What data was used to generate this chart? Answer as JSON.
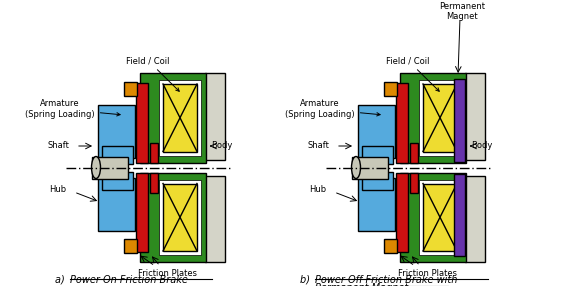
{
  "green": "#2d8a1f",
  "red": "#cc1111",
  "blue": "#55aadd",
  "yellow": "#eedc30",
  "orange": "#dd8800",
  "gray_light": "#d4d4c8",
  "gray_shaft": "#c8c8b8",
  "purple": "#6633aa",
  "black": "#000000",
  "white": "#ffffff",
  "ann_field_coil": "Field / Coil",
  "ann_armature": "Armature\n(Spring Loading)",
  "ann_shaft": "Shaft",
  "ann_hub": "Hub",
  "ann_body": "Body",
  "ann_friction": "Friction Plates",
  "ann_perm_magnet": "Permanent\nMagnet",
  "caption_a_prefix": "a)  ",
  "caption_a_text": "Power On Friction Brake",
  "caption_b_prefix": "b)  ",
  "caption_b_line1": "Power Off Friction Brake with",
  "caption_b_line2": "Permanent Magnet"
}
